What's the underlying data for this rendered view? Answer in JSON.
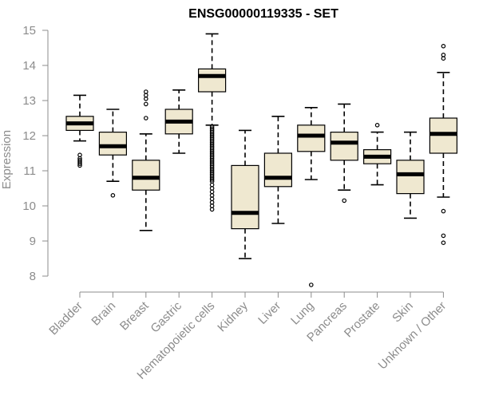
{
  "chart_data": {
    "type": "boxplot",
    "title": "ENSG00000119335 - SET",
    "xlabel": "",
    "ylabel": "Expression",
    "ylim": [
      8,
      15
    ],
    "yticks": [
      8,
      9,
      10,
      11,
      12,
      13,
      14,
      15
    ],
    "grid": false,
    "colors": {
      "box_fill": "#efe8d0",
      "stroke": "#000000",
      "axis": "#8c8c8c",
      "title": "#000000"
    },
    "categories": [
      "Bladder",
      "Brain",
      "Breast",
      "Gastric",
      "Hematopoietic cells",
      "Kidney",
      "Liver",
      "Lung",
      "Pancreas",
      "Prostate",
      "Skin",
      "Unknown / Other"
    ],
    "boxes": [
      {
        "category": "Bladder",
        "whisker_low": 11.85,
        "q1": 12.15,
        "median": 12.35,
        "q3": 12.55,
        "whisker_high": 13.15,
        "outliers": [
          11.45,
          11.35,
          11.3,
          11.25,
          11.2,
          11.15
        ]
      },
      {
        "category": "Brain",
        "whisker_low": 10.7,
        "q1": 11.45,
        "median": 11.7,
        "q3": 12.1,
        "whisker_high": 12.75,
        "outliers": [
          10.3
        ]
      },
      {
        "category": "Breast",
        "whisker_low": 9.3,
        "q1": 10.45,
        "median": 10.8,
        "q3": 11.3,
        "whisker_high": 12.05,
        "outliers": [
          13.25,
          13.15,
          13.05,
          12.9,
          12.5
        ]
      },
      {
        "category": "Gastric",
        "whisker_low": 11.5,
        "q1": 12.05,
        "median": 12.4,
        "q3": 12.75,
        "whisker_high": 13.3,
        "outliers": []
      },
      {
        "category": "Hematopoietic cells",
        "whisker_low": 12.3,
        "q1": 13.25,
        "median": 13.7,
        "q3": 13.9,
        "whisker_high": 14.9,
        "outliers": [
          12.25,
          12.2,
          12.15,
          12.1,
          12.05,
          12.0,
          11.95,
          11.9,
          11.85,
          11.8,
          11.75,
          11.7,
          11.65,
          11.6,
          11.55,
          11.5,
          11.45,
          11.4,
          11.35,
          11.3,
          11.25,
          11.2,
          11.15,
          11.1,
          11.05,
          11.0,
          10.95,
          10.9,
          10.85,
          10.8,
          10.75,
          10.7,
          10.6,
          10.5,
          10.4,
          10.3,
          10.2,
          10.1,
          10.0,
          9.9
        ]
      },
      {
        "category": "Kidney",
        "whisker_low": 8.5,
        "q1": 9.35,
        "median": 9.8,
        "q3": 11.15,
        "whisker_high": 12.15,
        "outliers": []
      },
      {
        "category": "Liver",
        "whisker_low": 9.5,
        "q1": 10.55,
        "median": 10.8,
        "q3": 11.5,
        "whisker_high": 12.55,
        "outliers": []
      },
      {
        "category": "Lung",
        "whisker_low": 10.75,
        "q1": 11.55,
        "median": 12.0,
        "q3": 12.3,
        "whisker_high": 12.8,
        "outliers": [
          7.75
        ]
      },
      {
        "category": "Pancreas",
        "whisker_low": 10.45,
        "q1": 11.3,
        "median": 11.8,
        "q3": 12.1,
        "whisker_high": 12.9,
        "outliers": [
          10.15
        ]
      },
      {
        "category": "Prostate",
        "whisker_low": 10.6,
        "q1": 11.2,
        "median": 11.4,
        "q3": 11.6,
        "whisker_high": 12.1,
        "outliers": [
          12.3
        ]
      },
      {
        "category": "Skin",
        "whisker_low": 9.65,
        "q1": 10.35,
        "median": 10.9,
        "q3": 11.3,
        "whisker_high": 12.1,
        "outliers": []
      },
      {
        "category": "Unknown / Other",
        "whisker_low": 10.25,
        "q1": 11.5,
        "median": 12.05,
        "q3": 12.5,
        "whisker_high": 13.8,
        "outliers": [
          14.55,
          14.3,
          14.2,
          9.85,
          9.15,
          8.95
        ]
      }
    ]
  }
}
